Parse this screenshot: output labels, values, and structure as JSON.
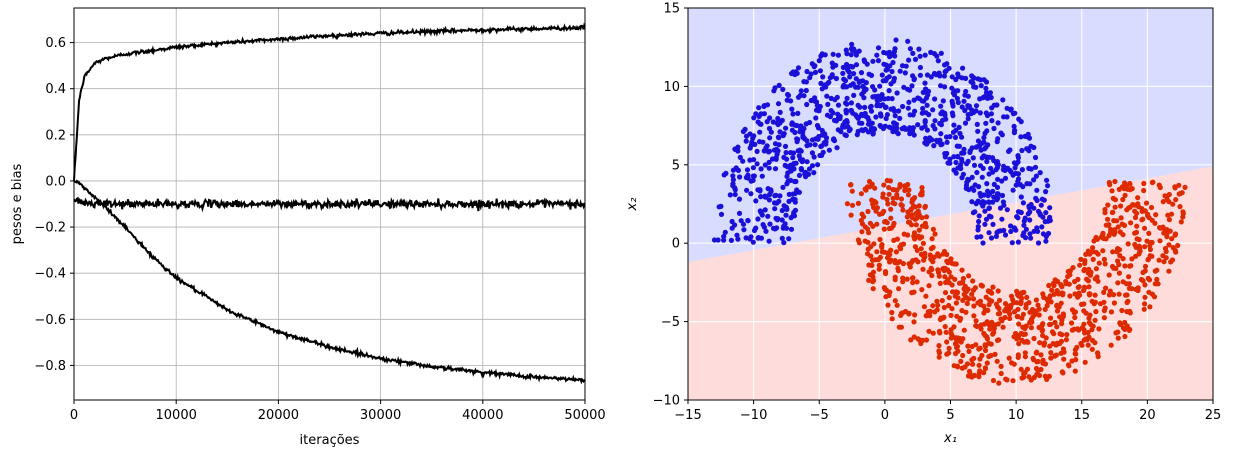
{
  "chart_data": [
    {
      "type": "line",
      "title": "",
      "xlabel": "iterações",
      "ylabel": "pesos e bias",
      "xlim": [
        0,
        50000
      ],
      "ylim": [
        -0.95,
        0.75
      ],
      "grid": true,
      "x_ticks": [
        0,
        10000,
        20000,
        30000,
        40000,
        50000
      ],
      "x_tick_labels": [
        "0",
        "10000",
        "20000",
        "30000",
        "40000",
        "50000"
      ],
      "y_ticks": [
        0.6,
        0.4,
        0.2,
        0.0,
        -0.2,
        -0.4,
        -0.6,
        -0.8
      ],
      "y_tick_labels": [
        "0.6",
        "0.4",
        "0.2",
        "0.0",
        "−0.2",
        "−0.4",
        "−0.6",
        "−0.8"
      ],
      "series_color": "#000000",
      "x": [
        0,
        500,
        1000,
        2000,
        3000,
        5000,
        7500,
        10000,
        15000,
        20000,
        25000,
        30000,
        35000,
        40000,
        45000,
        50000
      ],
      "series": [
        {
          "values": [
            0.0,
            0.35,
            0.45,
            0.51,
            0.53,
            0.55,
            0.565,
            0.58,
            0.6,
            0.615,
            0.63,
            0.64,
            0.648,
            0.655,
            0.66,
            0.665
          ]
        },
        {
          "values": [
            -0.08,
            -0.09,
            -0.095,
            -0.1,
            -0.1,
            -0.1,
            -0.1,
            -0.1,
            -0.1,
            -0.1,
            -0.1,
            -0.1,
            -0.1,
            -0.1,
            -0.1,
            -0.1
          ]
        },
        {
          "values": [
            0.0,
            -0.01,
            -0.03,
            -0.07,
            -0.11,
            -0.2,
            -0.32,
            -0.42,
            -0.56,
            -0.655,
            -0.72,
            -0.77,
            -0.805,
            -0.83,
            -0.85,
            -0.865
          ]
        }
      ]
    },
    {
      "type": "scatter",
      "title": "",
      "xlabel": "x₁",
      "ylabel": "x₂",
      "xlim": [
        -15,
        25
      ],
      "ylim": [
        -10,
        15
      ],
      "grid": true,
      "x_ticks": [
        -15,
        -10,
        -5,
        0,
        5,
        10,
        15,
        20,
        25
      ],
      "x_tick_labels": [
        "−15",
        "−10",
        "−5",
        "0",
        "5",
        "10",
        "15",
        "20",
        "25"
      ],
      "y_ticks": [
        15,
        10,
        5,
        0,
        -5,
        -10
      ],
      "y_tick_labels": [
        "15",
        "10",
        "5",
        "0",
        "−5",
        "−10"
      ],
      "decision_boundary": {
        "x": [
          -15,
          25
        ],
        "y": [
          -1.2,
          4.9
        ]
      },
      "colors": {
        "upper_region": "#d8dcff",
        "lower_region": "#ffdcdc",
        "class_a": "#1a10d8",
        "class_b": "#dd2a00"
      },
      "classes": [
        {
          "shape": "upper moon",
          "center": [
            0,
            0
          ],
          "radius": [
            7,
            13
          ],
          "angle_range_deg": [
            0,
            180
          ]
        },
        {
          "shape": "lower moon",
          "center": [
            10,
            4
          ],
          "radius": [
            7,
            13
          ],
          "angle_range_deg": [
            180,
            360
          ]
        }
      ],
      "points_per_class": 1000
    }
  ]
}
